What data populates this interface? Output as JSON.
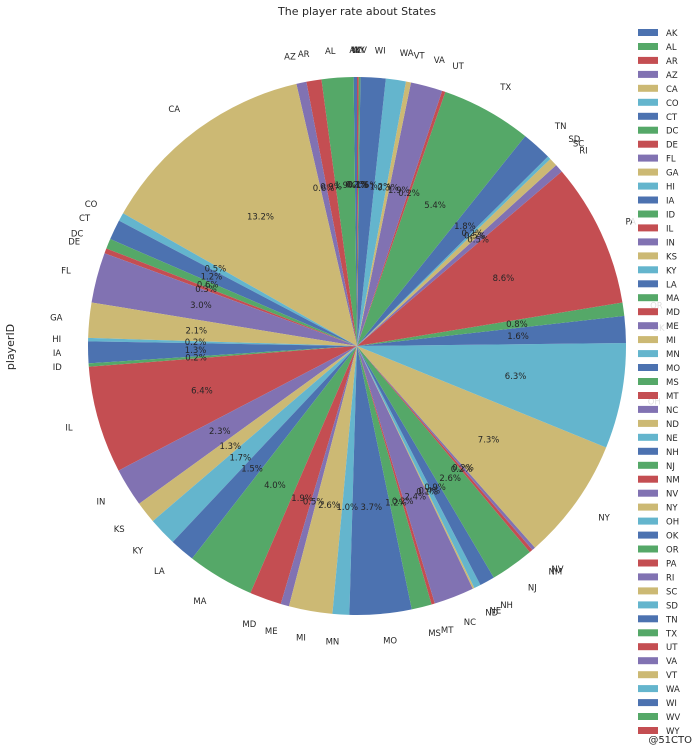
{
  "chart_data": {
    "type": "pie",
    "title": "The player rate about States",
    "ylabel": "playerID",
    "start_angle_deg": 90,
    "direction": "counterclockwise",
    "legend_position": "right",
    "autopct_format": "%.1f%%",
    "categories": [
      "AK",
      "AL",
      "AR",
      "AZ",
      "CA",
      "CO",
      "CT",
      "DC",
      "DE",
      "FL",
      "GA",
      "HI",
      "IA",
      "ID",
      "IL",
      "IN",
      "KS",
      "KY",
      "LA",
      "MA",
      "MD",
      "ME",
      "MI",
      "MN",
      "MO",
      "MS",
      "MT",
      "NC",
      "ND",
      "NE",
      "NH",
      "NJ",
      "NM",
      "NV",
      "NY",
      "OH",
      "OK",
      "OR",
      "PA",
      "RI",
      "SC",
      "SD",
      "TN",
      "TX",
      "UT",
      "VA",
      "VT",
      "WA",
      "WI",
      "WV",
      "WY"
    ],
    "values": [
      0.2,
      1.9,
      0.9,
      0.6,
      13.1,
      0.5,
      1.2,
      0.6,
      0.3,
      3.0,
      2.1,
      0.2,
      1.3,
      0.2,
      6.4,
      2.3,
      1.3,
      1.7,
      1.5,
      4.0,
      1.9,
      0.5,
      2.6,
      1.0,
      3.7,
      1.2,
      0.2,
      2.4,
      0.1,
      0.4,
      0.9,
      2.6,
      0.2,
      0.2,
      7.3,
      6.3,
      1.6,
      0.8,
      8.6,
      0.5,
      0.5,
      0.2,
      1.8,
      5.4,
      0.2,
      1.9,
      0.3,
      1.2,
      1.5,
      0.1,
      0.1
    ],
    "colors": [
      "#4c72b0",
      "#55a868",
      "#c44e52",
      "#8172b2",
      "#ccb974",
      "#64b5cd"
    ]
  },
  "watermark": "@51CTO"
}
